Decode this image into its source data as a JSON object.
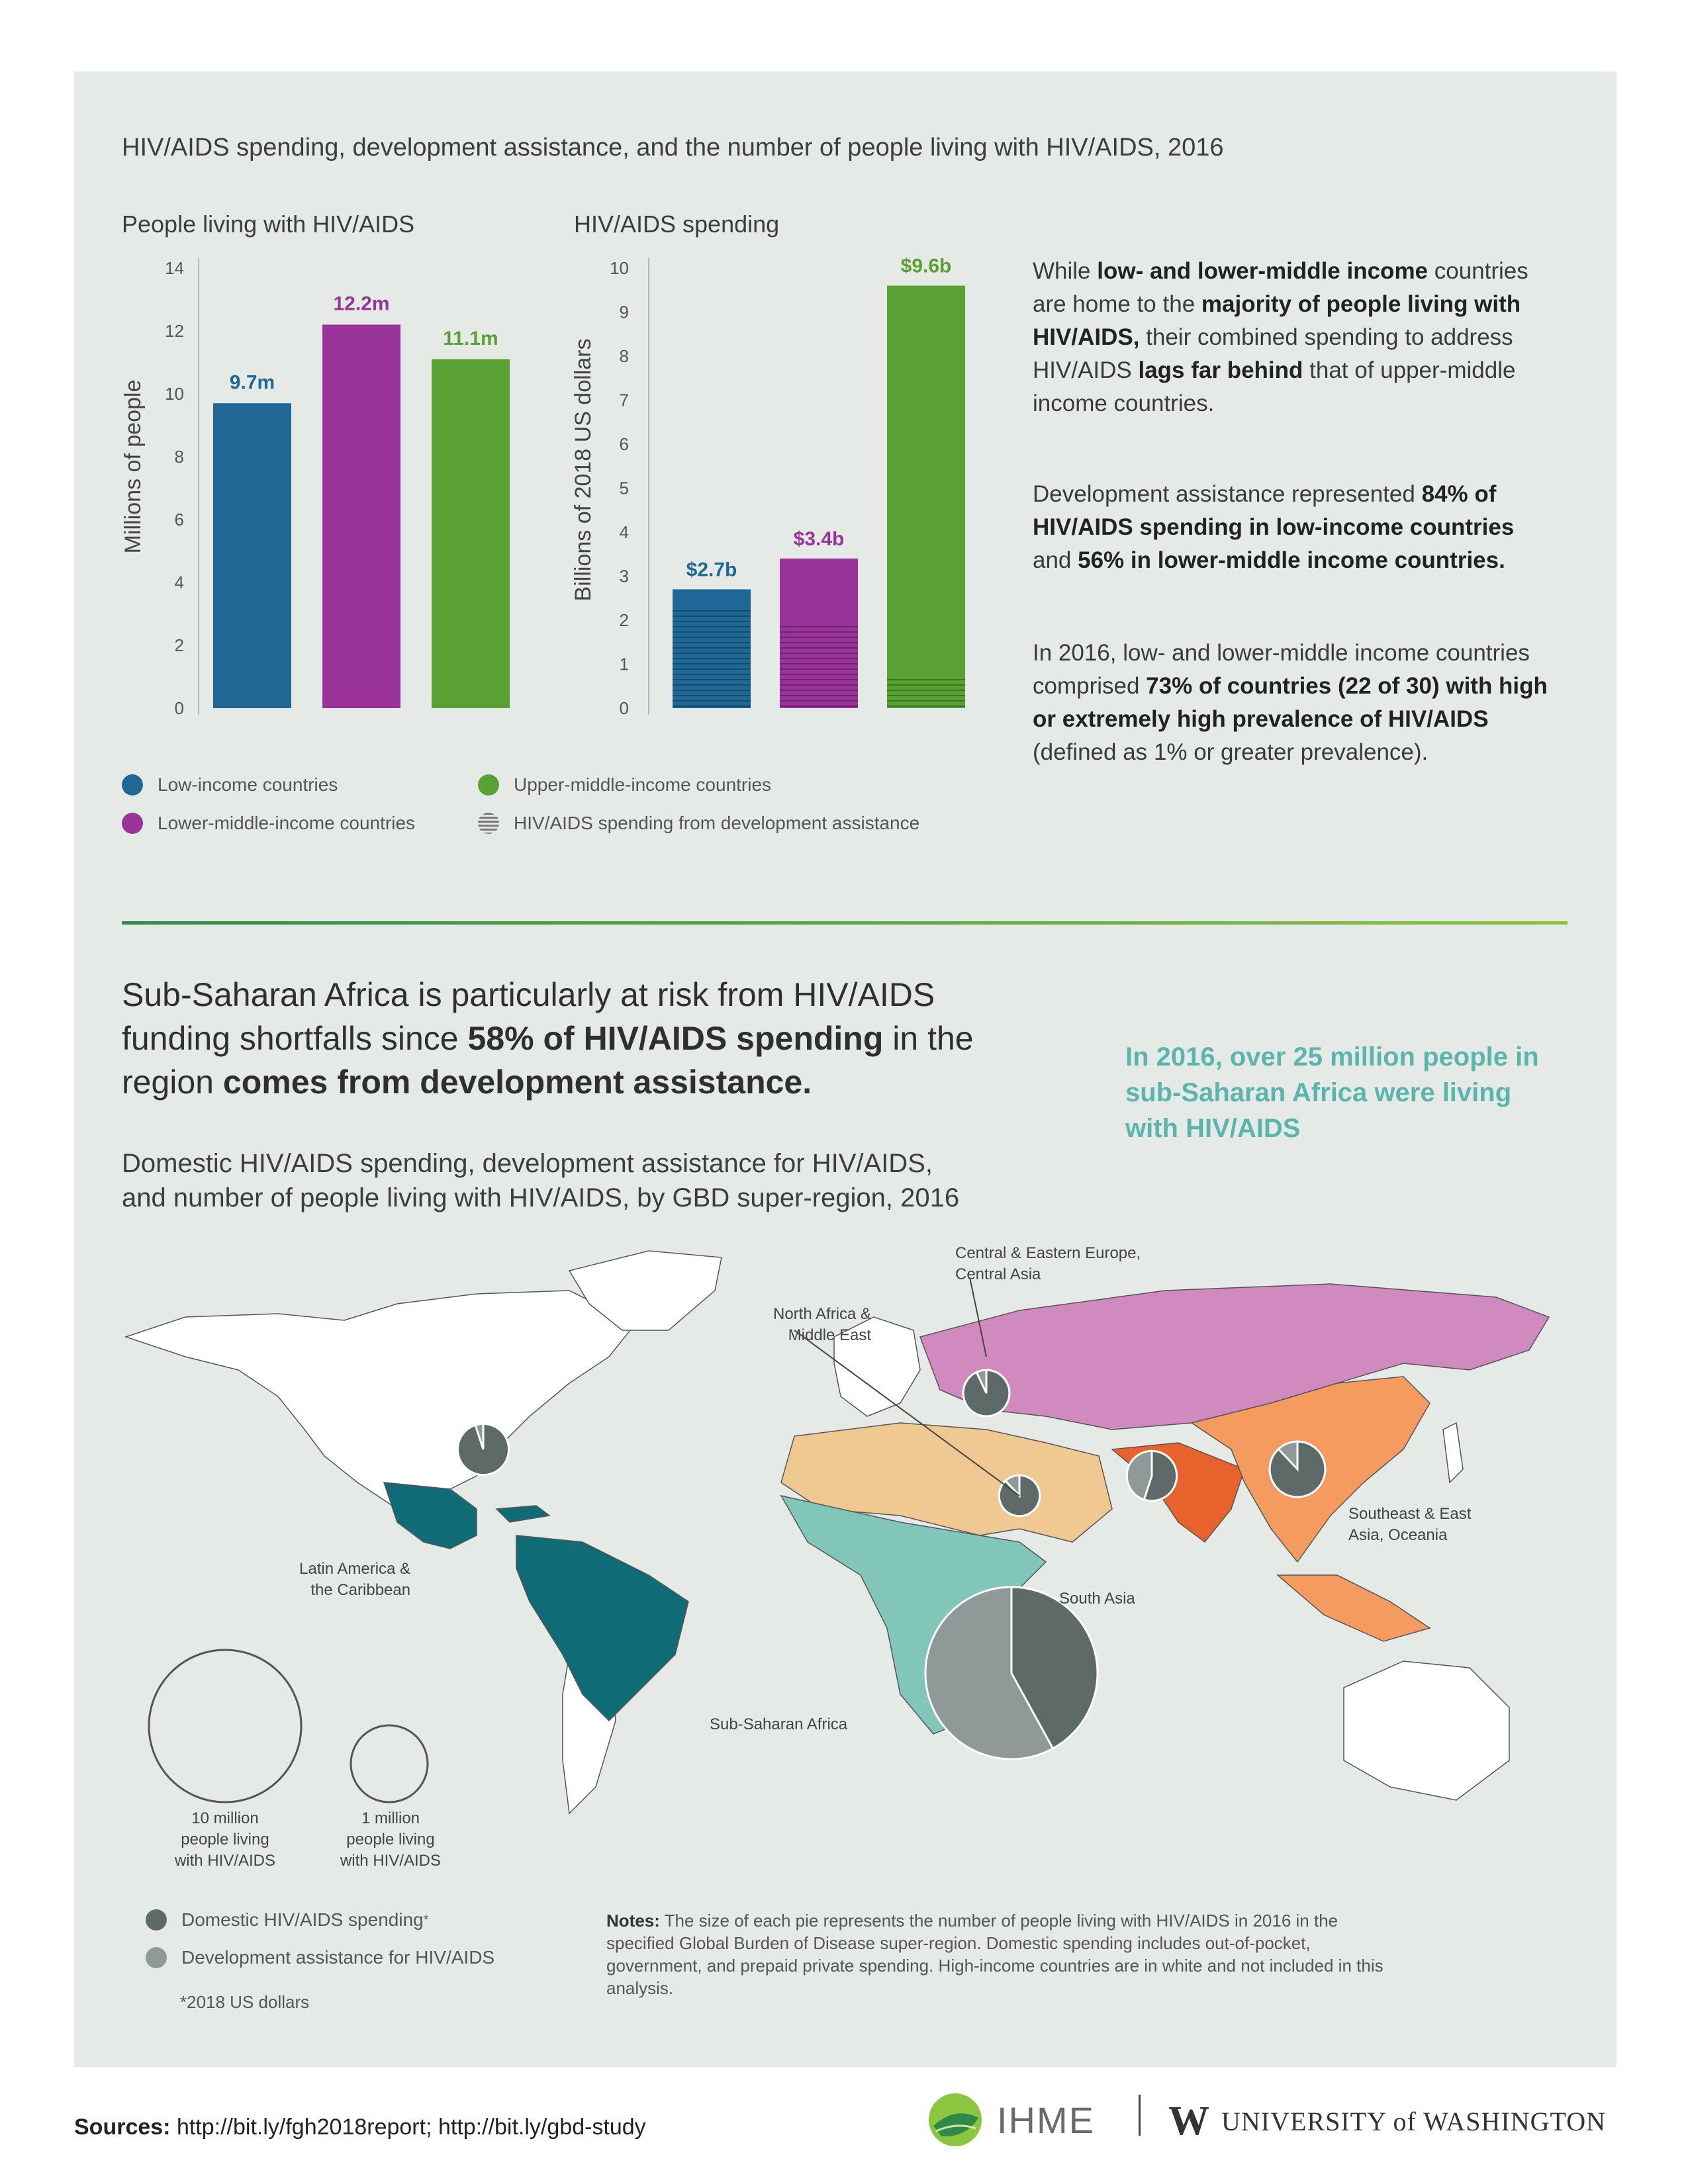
{
  "title": "HIV/AIDS spending, development assistance, and the number of people living with HIV/AIDS, 2016",
  "colors": {
    "low": "#1f6896",
    "lower_middle": "#993399",
    "upper_middle": "#5aa134",
    "domestic": "#5e6a67",
    "dah": "#8f9a98"
  },
  "chart_data": [
    {
      "type": "bar",
      "title": "People living with HIV/AIDS",
      "ylabel": "Millions of people",
      "ylim": [
        0,
        14
      ],
      "yticks": [
        "0",
        "2",
        "4",
        "6",
        "8",
        "10",
        "12",
        "14"
      ],
      "categories": [
        "Low-income countries",
        "Lower-middle-income countries",
        "Upper-middle-income countries"
      ],
      "values": [
        9.7,
        12.2,
        11.1
      ],
      "data_labels": [
        "9.7m",
        "12.2m",
        "11.1m"
      ],
      "grid": false
    },
    {
      "type": "bar",
      "title": "HIV/AIDS spending",
      "ylabel": "Billions of 2018 US dollars",
      "ylim": [
        0,
        10
      ],
      "yticks": [
        "0",
        "1",
        "2",
        "3",
        "4",
        "5",
        "6",
        "7",
        "8",
        "9",
        "10"
      ],
      "categories": [
        "Low-income countries",
        "Lower-middle-income countries",
        "Upper-middle-income countries"
      ],
      "values": [
        2.7,
        3.4,
        9.6
      ],
      "data_labels": [
        "$2.7b",
        "$3.4b",
        "$9.6b"
      ],
      "dah_values": [
        2.3,
        1.9,
        0.7
      ],
      "grid": false
    },
    {
      "type": "pie",
      "title": "Domestic HIV/AIDS spending, development assistance for HIV/AIDS, and number of people living with HIV/AIDS, by GBD super-region, 2016",
      "series": [
        "Domestic HIV/AIDS spending",
        "Development assistance for HIV/AIDS"
      ],
      "regions": [
        {
          "name": "Sub-Saharan Africa",
          "domestic_share": 0.42,
          "people_millions": 25.0
        },
        {
          "name": "Latin America & the Caribbean",
          "domestic_share": 0.95,
          "people_millions": 2.2
        },
        {
          "name": "Central & Eastern Europe, Central Asia",
          "domestic_share": 0.93,
          "people_millions": 1.8
        },
        {
          "name": "North Africa & Middle East",
          "domestic_share": 0.88,
          "people_millions": 1.4
        },
        {
          "name": "South Asia",
          "domestic_share": 0.55,
          "people_millions": 2.1
        },
        {
          "name": "Southeast & East Asia, Oceania",
          "domestic_share": 0.88,
          "people_millions": 2.6
        }
      ]
    }
  ],
  "legend": {
    "low": "Low-income countries",
    "lower_middle": "Lower-middle-income countries",
    "upper_middle": "Upper-middle-income countries",
    "dah": "HIV/AIDS spending from development assistance"
  },
  "paragraphs": {
    "p1": [
      {
        "t": "While ",
        "b": false
      },
      {
        "t": "low- and lower-middle income",
        "b": true
      },
      {
        "t": " countries are home to the ",
        "b": false
      },
      {
        "t": "majority of people living with HIV/AIDS,",
        "b": true
      },
      {
        "t": " their combined spending to address HIV/AIDS ",
        "b": false
      },
      {
        "t": "lags far behind",
        "b": true
      },
      {
        "t": " that of upper-middle income countries.",
        "b": false
      }
    ],
    "p2": [
      {
        "t": "Development assistance represented ",
        "b": false
      },
      {
        "t": "84% of HIV/AIDS spending in low-income countries",
        "b": true
      },
      {
        "t": " and ",
        "b": false
      },
      {
        "t": "56% in lower-middle income countries.",
        "b": true
      }
    ],
    "p3": [
      {
        "t": "In 2016, low- and lower-middle income countries comprised ",
        "b": false
      },
      {
        "t": "73% of countries (22 of 30) with high or extremely high prevalence of HIV/AIDS",
        "b": true
      },
      {
        "t": " (defined as 1% or greater prevalence).",
        "b": false
      }
    ]
  },
  "headline": [
    {
      "t": "Sub-Saharan Africa is particularly at risk from HIV/AIDS funding shortfalls since ",
      "b": false
    },
    {
      "t": "58% of HIV/AIDS spending",
      "b": true
    },
    {
      "t": " in the region ",
      "b": false
    },
    {
      "t": "comes from development assistance.",
      "b": true
    }
  ],
  "callout": "In 2016, over 25 million people in sub-Saharan Africa were living with HIV/AIDS",
  "map_title_line1": "Domestic HIV/AIDS spending, development assistance for HIV/AIDS,",
  "map_title_line2": "and number of people living with HIV/AIDS, by GBD super-region, 2016",
  "map_labels": {
    "ceeca_1": "Central & Eastern Europe,",
    "ceeca_2": "Central Asia",
    "nafme_1": "North Africa &",
    "nafme_2": "Middle East",
    "lac_1": "Latin America &",
    "lac_2": "the Caribbean",
    "sa": "South Asia",
    "seao_1": "Southeast & East",
    "seao_2": "Asia, Oceania",
    "ssa": "Sub-Saharan Africa"
  },
  "size_legend": {
    "big_1": "10 million",
    "big_2": "people living",
    "big_3": "with HIV/AIDS",
    "small_1": "1 million",
    "small_2": "people living",
    "small_3": "with HIV/AIDS"
  },
  "pie_legend": {
    "domestic": "Domestic HIV/AIDS spending",
    "asterisk": "*",
    "dah": "Development assistance for HIV/AIDS",
    "footnote": "*2018 US dollars"
  },
  "notes": {
    "label": "Notes:",
    "text": " The size of each pie represents the number of people living with HIV/AIDS in 2016 in the specified Global Burden of Disease super-region. Domestic spending includes out-of-pocket, government, and prepaid private spending. High-income countries are in white and not included in this analysis."
  },
  "sources": {
    "label": "Sources:",
    "text": " http://bit.ly/fgh2018report; http://bit.ly/gbd-study"
  },
  "logos": {
    "ihme": "IHME",
    "uw_mark": "W",
    "uw_text": "UNIVERSITY of WASHINGTON"
  }
}
